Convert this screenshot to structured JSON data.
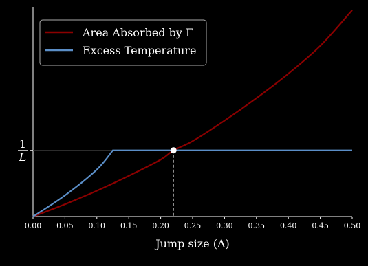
{
  "chart_data": {
    "type": "line",
    "xlabel": "Jump size (Δ)",
    "ylabel": "",
    "xlim": [
      0.0,
      0.5
    ],
    "x_ticks": [
      "0.00",
      "0.05",
      "0.10",
      "0.15",
      "0.20",
      "0.25",
      "0.30",
      "0.35",
      "0.40",
      "0.45",
      "0.50"
    ],
    "y_mark": {
      "numerator": "1",
      "denominator": "L",
      "value": 1.0
    },
    "ylim": [
      0.0,
      3.17
    ],
    "legend_position": "top-left",
    "grid": false,
    "background": "#000000",
    "series": [
      {
        "name": "Area Absorbed by Γ",
        "color": "#8b0000",
        "x": [
          0.0,
          0.05,
          0.1,
          0.15,
          0.2,
          0.22,
          0.25,
          0.3,
          0.35,
          0.4,
          0.45,
          0.5
        ],
        "y": [
          0.0,
          0.185,
          0.39,
          0.615,
          0.86,
          1.0,
          1.14,
          1.45,
          1.79,
          2.16,
          2.58,
          3.12
        ]
      },
      {
        "name": "Excess Temperature",
        "color": "#5b8ec7",
        "x": [
          0.0,
          0.05,
          0.1,
          0.125,
          0.2,
          0.3,
          0.4,
          0.5
        ],
        "y": [
          0.0,
          0.32,
          0.71,
          1.0,
          1.0,
          1.0,
          1.0,
          1.0
        ]
      }
    ],
    "intersection": {
      "x": 0.22,
      "y": 1.0
    }
  }
}
